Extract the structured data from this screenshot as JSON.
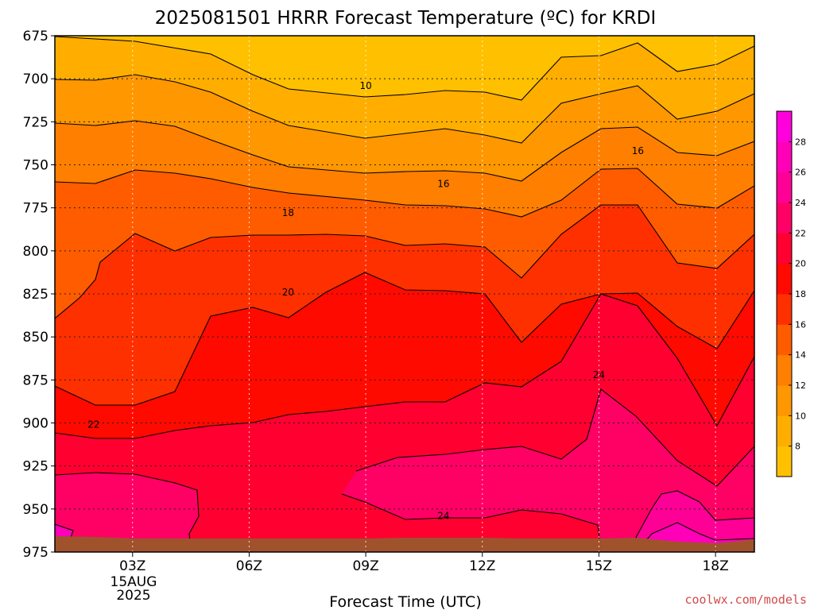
{
  "chart_data": {
    "type": "heatmap",
    "title": "2025081501 HRRR Forecast Temperature (ºC) for KRDI",
    "xlabel": "Forecast Time (UTC)",
    "ylabel": "",
    "credit": "coolwx.com/models",
    "x_ticks": [
      {
        "label": "03Z",
        "hour": 3
      },
      {
        "label": "06Z",
        "hour": 6
      },
      {
        "label": "09Z",
        "hour": 9
      },
      {
        "label": "12Z",
        "hour": 12
      },
      {
        "label": "15Z",
        "hour": 15
      },
      {
        "label": "18Z",
        "hour": 18
      }
    ],
    "date_label": [
      "15AUG",
      "2025"
    ],
    "xlim": [
      1,
      19
    ],
    "y_ticks": [
      675,
      700,
      725,
      750,
      775,
      800,
      825,
      850,
      875,
      900,
      925,
      950,
      975
    ],
    "ylim": [
      975,
      675
    ],
    "grid": true,
    "levels": [
      8,
      10,
      12,
      14,
      16,
      18,
      20,
      22,
      24,
      26,
      28
    ],
    "colorbar_ticks": [
      8,
      10,
      12,
      14,
      16,
      18,
      20,
      22,
      24,
      26,
      28
    ],
    "colors": {
      "below_8": "#ffc000",
      "8": "#ffae00",
      "10": "#ff9700",
      "12": "#ff7f00",
      "14": "#ff5c00",
      "16": "#ff3000",
      "18": "#ff0a00",
      "20": "#ff0030",
      "22": "#ff0064",
      "24": "#ff0096",
      "26": "#ff00b8",
      "28": "#ff00dc",
      "ground": "#a0522d"
    },
    "contour_labels": [
      {
        "text": "10",
        "hour": 9,
        "p": 704
      },
      {
        "text": "16",
        "hour": 11,
        "p": 761
      },
      {
        "text": "16",
        "hour": 16,
        "p": 742
      },
      {
        "text": "18",
        "hour": 7,
        "p": 778
      },
      {
        "text": "20",
        "hour": 7,
        "p": 824
      },
      {
        "text": "22",
        "hour": 2,
        "p": 901
      },
      {
        "text": "24",
        "hour": 15,
        "p": 872
      },
      {
        "text": "24",
        "hour": 11,
        "p": 954
      }
    ]
  }
}
